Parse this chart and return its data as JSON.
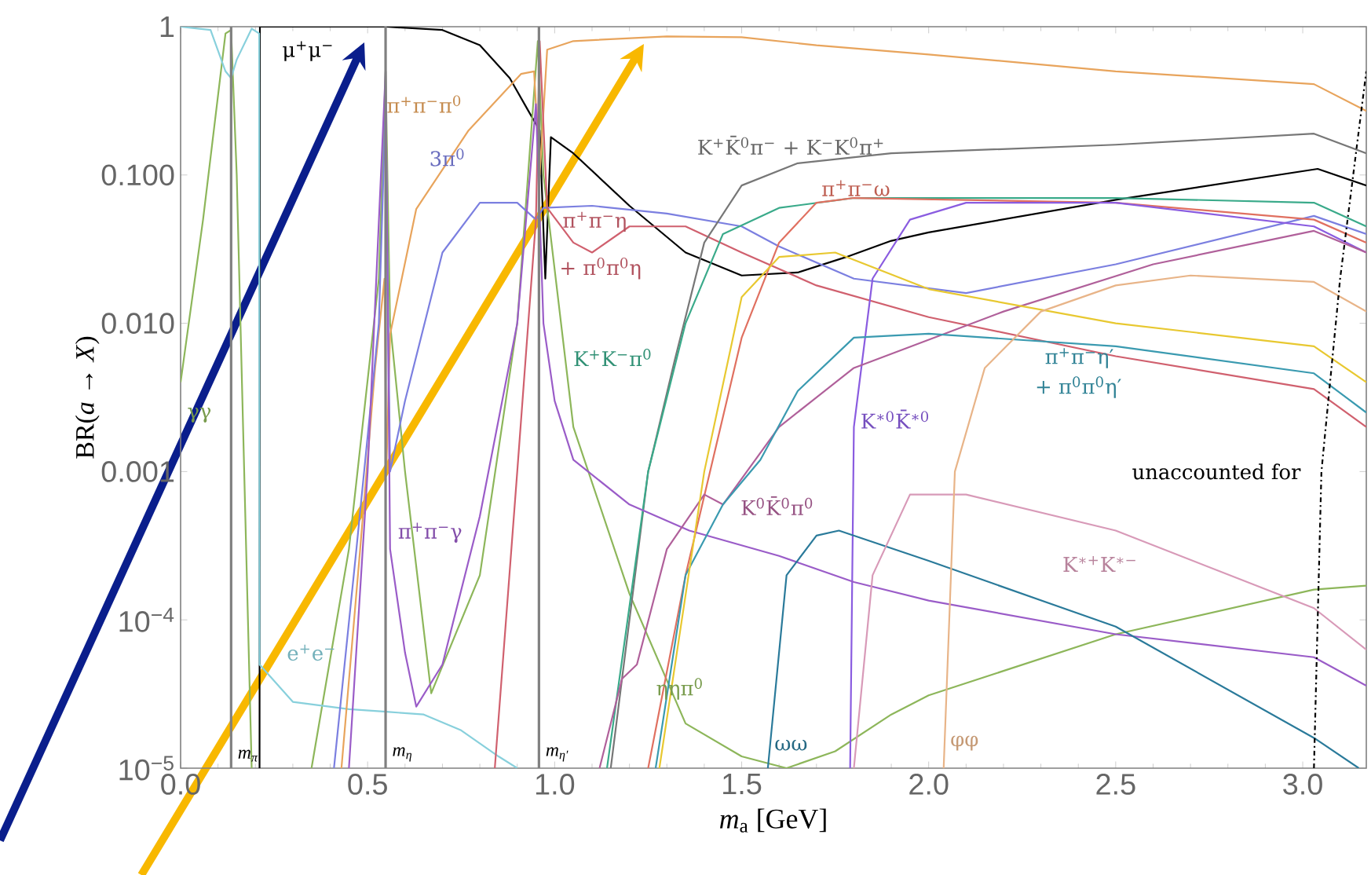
{
  "chart_data": {
    "type": "line",
    "xlabel": "*m*$_{a}$ [GeV]",
    "ylabel": "BR(*a* → *X*)",
    "log": "y",
    "marker": "none",
    "grid": false,
    "xlim": [
      0,
      3.17
    ],
    "ylim": [
      1e-05,
      1
    ],
    "xticks": [
      {
        "value": 0,
        "label": "0.0"
      },
      {
        "value": 0.5,
        "label": "0.5"
      },
      {
        "value": 1,
        "label": "1.0"
      },
      {
        "value": 1.5,
        "label": "1.5"
      },
      {
        "value": 2,
        "label": "2.0"
      },
      {
        "value": 2.5,
        "label": "2.5"
      },
      {
        "value": 3,
        "label": "3.0"
      }
    ],
    "yticks": [
      {
        "value": 1e-05,
        "label": "10$^{−5}$"
      },
      {
        "value": 0.0001,
        "label": "10$^{−4}$"
      },
      {
        "value": 0.001,
        "label": "0.001"
      },
      {
        "value": 0.01,
        "label": "0.010"
      },
      {
        "value": 0.1,
        "label": "0.100"
      },
      1
    ],
    "ref_lines": [
      {
        "axis": "x",
        "value": 0.135,
        "label": "m$_{π}$",
        "color": "#808080"
      },
      {
        "axis": "x",
        "value": 0.548,
        "label": "m$_{η}$",
        "color": "#808080"
      },
      {
        "axis": "x",
        "value": 0.958,
        "label": "m$_{η′}$",
        "color": "#808080"
      }
    ],
    "series": [
      {
        "color": "#000000",
        "x": [
          0.211,
          0.212,
          0.55,
          0.7,
          0.8,
          0.88,
          0.93,
          0.96,
          0.975,
          0.99,
          1.05,
          1.2,
          1.35,
          1.5,
          1.65,
          1.78,
          1.9,
          2.0,
          2.5,
          3.04,
          3.17
        ],
        "values": [
          1e-05,
          1,
          1,
          0.95,
          0.75,
          0.45,
          0.27,
          0.2,
          0.02,
          0.18,
          0.14,
          0.062,
          0.03,
          0.021,
          0.022,
          0.028,
          0.036,
          0.041,
          0.068,
          0.11,
          0.085
        ]
      },
      {
        "color": "#8db65a",
        "x": [
          0.0,
          0.06,
          0.12,
          0.135,
          0.15,
          0.19,
          0.2,
          0.35,
          0.45,
          0.53,
          0.548,
          0.56,
          0.6,
          0.67,
          0.8,
          0.9,
          0.955,
          0.97,
          1.05,
          1.2,
          1.35,
          1.5,
          1.62,
          1.75,
          1.9,
          2.0,
          2.5,
          3.03,
          3.17
        ],
        "values": [
          0.004,
          0.05,
          0.9,
          0.95,
          0.1,
          1e-05,
          null,
          1e-05,
          0.0003,
          0.02,
          0.5,
          0.01,
          0.001,
          3.2e-05,
          0.0002,
          0.01,
          0.8,
          0.1,
          0.002,
          0.00015,
          2e-05,
          1.2e-05,
          1e-05,
          1.3e-05,
          2.3e-05,
          3.1e-05,
          8e-05,
          0.00016,
          0.00017
        ]
      },
      {
        "color": "#88d0dc",
        "x": [
          0.0,
          0.08,
          0.12,
          0.135,
          0.15,
          0.19,
          0.21,
          0.211,
          0.3,
          0.45,
          0.55,
          0.65,
          0.75,
          0.85,
          0.9
        ],
        "values": [
          1,
          0.95,
          0.5,
          0.45,
          0.6,
          0.97,
          0.9,
          5e-05,
          2.8e-05,
          2.5e-05,
          2.4e-05,
          2.3e-05,
          1.8e-05,
          1.2e-05,
          1e-05
        ]
      },
      {
        "color": "#e8a45c",
        "x": [
          0.43,
          0.48,
          0.52,
          0.545,
          0.55,
          0.56,
          0.63,
          0.77,
          0.91,
          0.945,
          0.96,
          0.98,
          1.05,
          1.3,
          1.5,
          1.7,
          2.0,
          2.5,
          3.03,
          3.17
        ],
        "values": [
          1e-05,
          0.0003,
          0.005,
          0.02,
          0.001,
          0.0084,
          0.059,
          0.2,
          0.48,
          0.5,
          0.1,
          0.7,
          0.8,
          0.86,
          0.85,
          0.75,
          0.65,
          0.5,
          0.41,
          0.27
        ]
      },
      {
        "color": "#7b7fe0",
        "x": [
          0.41,
          0.47,
          0.53,
          0.548,
          0.56,
          0.6,
          0.7,
          0.8,
          0.9,
          0.95,
          0.97,
          1.1,
          1.3,
          1.5,
          1.6,
          1.8,
          2.1,
          2.5,
          3.03,
          3.17
        ],
        "values": [
          1e-05,
          0.0003,
          0.01,
          0.3,
          0.001,
          0.003,
          0.03,
          0.065,
          0.065,
          0.05,
          0.06,
          0.062,
          0.055,
          0.045,
          0.033,
          0.02,
          0.016,
          0.025,
          0.053,
          0.04
        ]
      },
      {
        "color": "#d0606e",
        "x": [
          0.84,
          0.9,
          0.95,
          0.96,
          0.98,
          1.05,
          1.1,
          1.2,
          1.35,
          1.5,
          1.7,
          2.0,
          2.5,
          3.03,
          3.17
        ],
        "values": [
          1e-05,
          0.001,
          0.05,
          0.8,
          0.06,
          0.035,
          0.03,
          0.045,
          0.045,
          0.03,
          0.018,
          0.011,
          0.006,
          0.0036,
          0.002
        ]
      },
      {
        "color": "#777777",
        "x": [
          1.15,
          1.25,
          1.32,
          1.4,
          1.5,
          1.65,
          1.9,
          2.5,
          3.03,
          3.17
        ],
        "values": [
          1e-05,
          0.001,
          0.0055,
          0.035,
          0.085,
          0.12,
          0.14,
          0.16,
          0.19,
          0.14
        ]
      },
      {
        "color": "#3aaa8a",
        "x": [
          1.14,
          1.25,
          1.35,
          1.45,
          1.6,
          1.8,
          2.5,
          3.03,
          3.17
        ],
        "values": [
          1e-05,
          0.001,
          0.01,
          0.04,
          0.06,
          0.07,
          0.07,
          0.065,
          0.045
        ]
      },
      {
        "color": "#e07060",
        "x": [
          1.25,
          1.35,
          1.5,
          1.6,
          1.7,
          1.8,
          2.5,
          3.03,
          3.17
        ],
        "values": [
          1e-05,
          0.0002,
          0.008,
          0.035,
          0.065,
          0.07,
          0.065,
          0.05,
          0.035
        ]
      },
      {
        "color": "#8a5ce0",
        "x": [
          1.79,
          1.8,
          1.85,
          1.95,
          2.1,
          2.5,
          3.03,
          3.17
        ],
        "values": [
          1e-05,
          0.002,
          0.02,
          0.05,
          0.065,
          0.065,
          0.045,
          0.03
        ]
      },
      {
        "color": "#9a5cc8",
        "x": [
          0.45,
          0.5,
          0.548,
          0.56,
          0.6,
          0.63,
          0.7,
          0.8,
          0.9,
          0.95,
          0.97,
          1.0,
          1.05,
          1.2,
          1.36,
          1.6,
          1.8,
          2.0,
          2.5,
          3.03,
          3.17
        ],
        "values": [
          1e-05,
          0.001,
          0.5,
          0.0003,
          6e-05,
          2.6e-05,
          5e-05,
          0.0005,
          0.01,
          0.3,
          0.01,
          0.003,
          0.0012,
          0.0006,
          0.0004,
          0.00027,
          0.00018,
          0.000135,
          8e-05,
          5.6e-05,
          3.6e-05
        ]
      },
      {
        "color": "#b0609a",
        "x": [
          1.12,
          1.18,
          1.22,
          1.3,
          1.4,
          1.45,
          1.6,
          1.8,
          2.2,
          2.6,
          3.03,
          3.17
        ],
        "values": [
          1e-05,
          4e-05,
          5e-05,
          0.0003,
          0.0007,
          0.0006,
          0.002,
          0.005,
          0.012,
          0.025,
          0.042,
          0.03
        ]
      },
      {
        "color": "#3a9ab0",
        "x": [
          1.27,
          1.35,
          1.45,
          1.55,
          1.65,
          1.8,
          2.0,
          2.5,
          3.03,
          3.17
        ],
        "values": [
          1e-05,
          0.0002,
          0.0006,
          0.0012,
          0.0035,
          0.008,
          0.0085,
          0.007,
          0.0046,
          0.0025
        ]
      },
      {
        "color": "#e8c830",
        "x": [
          1.28,
          1.4,
          1.5,
          1.6,
          1.75,
          2.0,
          2.5,
          3.03,
          3.17
        ],
        "values": [
          1e-05,
          0.001,
          0.015,
          0.028,
          0.03,
          0.017,
          0.01,
          0.007,
          0.004
        ]
      },
      {
        "color": "#2a7a9a",
        "x": [
          1.57,
          1.62,
          1.7,
          1.76,
          2.0,
          2.5,
          3.03,
          3.15
        ],
        "values": [
          1e-05,
          0.0002,
          0.00037,
          0.0004,
          0.00025,
          9e-05,
          1.6e-05,
          1e-05
        ]
      },
      {
        "color": "#d89ab8",
        "x": [
          1.8,
          1.85,
          1.95,
          2.1,
          2.5,
          3.03,
          3.17
        ],
        "values": [
          1e-05,
          0.0002,
          0.0007,
          0.0007,
          0.0004,
          0.00012,
          6.3e-05
        ]
      },
      {
        "color": "#e8b488",
        "x": [
          2.04,
          2.07,
          2.15,
          2.3,
          2.5,
          2.7,
          3.03,
          3.17
        ],
        "values": [
          1e-05,
          0.001,
          0.005,
          0.012,
          0.018,
          0.021,
          0.019,
          0.012
        ]
      },
      {
        "color": "#000000",
        "line_style": "dashed",
        "x": [
          3.03,
          3.05,
          3.1,
          3.15,
          3.17
        ],
        "values": [
          1e-05,
          0.001,
          0.02,
          0.2,
          0.5
        ]
      }
    ],
    "annotations": [
      {
        "text": "μ$^{+}$μ$^{−}$",
        "x": 0.3,
        "y": 1
      },
      {
        "text": "π$^{+}$π$^{−}$π$^{0}$",
        "x": 0.77,
        "y": 0.2
      },
      {
        "text": "3π$^{0}$",
        "x": 0.8,
        "y": 0.065
      },
      {
        "text": "π$^{+}$π$^{−}$η",
        "x": 1.1,
        "y": 0.03
      },
      {
        "text": "+ π$^{0}$π$^{0}$η",
        "x": 1.1,
        "y": 0.03
      },
      "K$^{+}$K̄$^{0}$π$^{−}$ + K$^{−}$K$^{0}$π$^{+}$",
      {
        "text": "π$^{+}$π$^{−}$ω",
        "x": 1.7,
        "y": 0.065
      },
      {
        "text": "K$^{+}$K$^{−}$π$^{0}$",
        "x": 1.35,
        "y": 0.01
      },
      {
        "text": "π$^{+}$π$^{−}$η′",
        "x": 2.5,
        "y": 0.007
      },
      {
        "text": "+ π$^{0}$π$^{0}$η′",
        "x": 2.5,
        "y": 0.007
      },
      {
        "text": "K$^{∗0}$K̄$^{∗0}$",
        "x": 1.8,
        "y": 0.002
      },
      {
        "text": "unaccounted for",
        "x": 3.05,
        "y": 0.001
      },
      {
        "text": "K$^{0}$K̄$^{0}$π$^{0}$",
        "x": 1.45,
        "y": 0.0006
      },
      {
        "text": "K$^{∗+}$K$^{∗−}$",
        "x": 2.5,
        "y": 0.0004
      },
      {
        "text": "π$^{+}$π$^{−}$γ",
        "x": 0.8,
        "y": 0.0005
      },
      {
        "text": "e$^{+}$e$^{−}$",
        "x": 0.3,
        "y": 2.8e-05
      },
      {
        "text": "ηηπ$^{0}$",
        "x": 1.35,
        "y": 2e-05
      },
      {
        "text": "ωω",
        "x": 1.57,
        "y": 1e-05
      },
      {
        "text": "φφ",
        "x": 2.04,
        "y": 1e-05
      },
      {
        "text": "γγ",
        "x": 0.0,
        "y": 0.004
      }
    ]
  }
}
